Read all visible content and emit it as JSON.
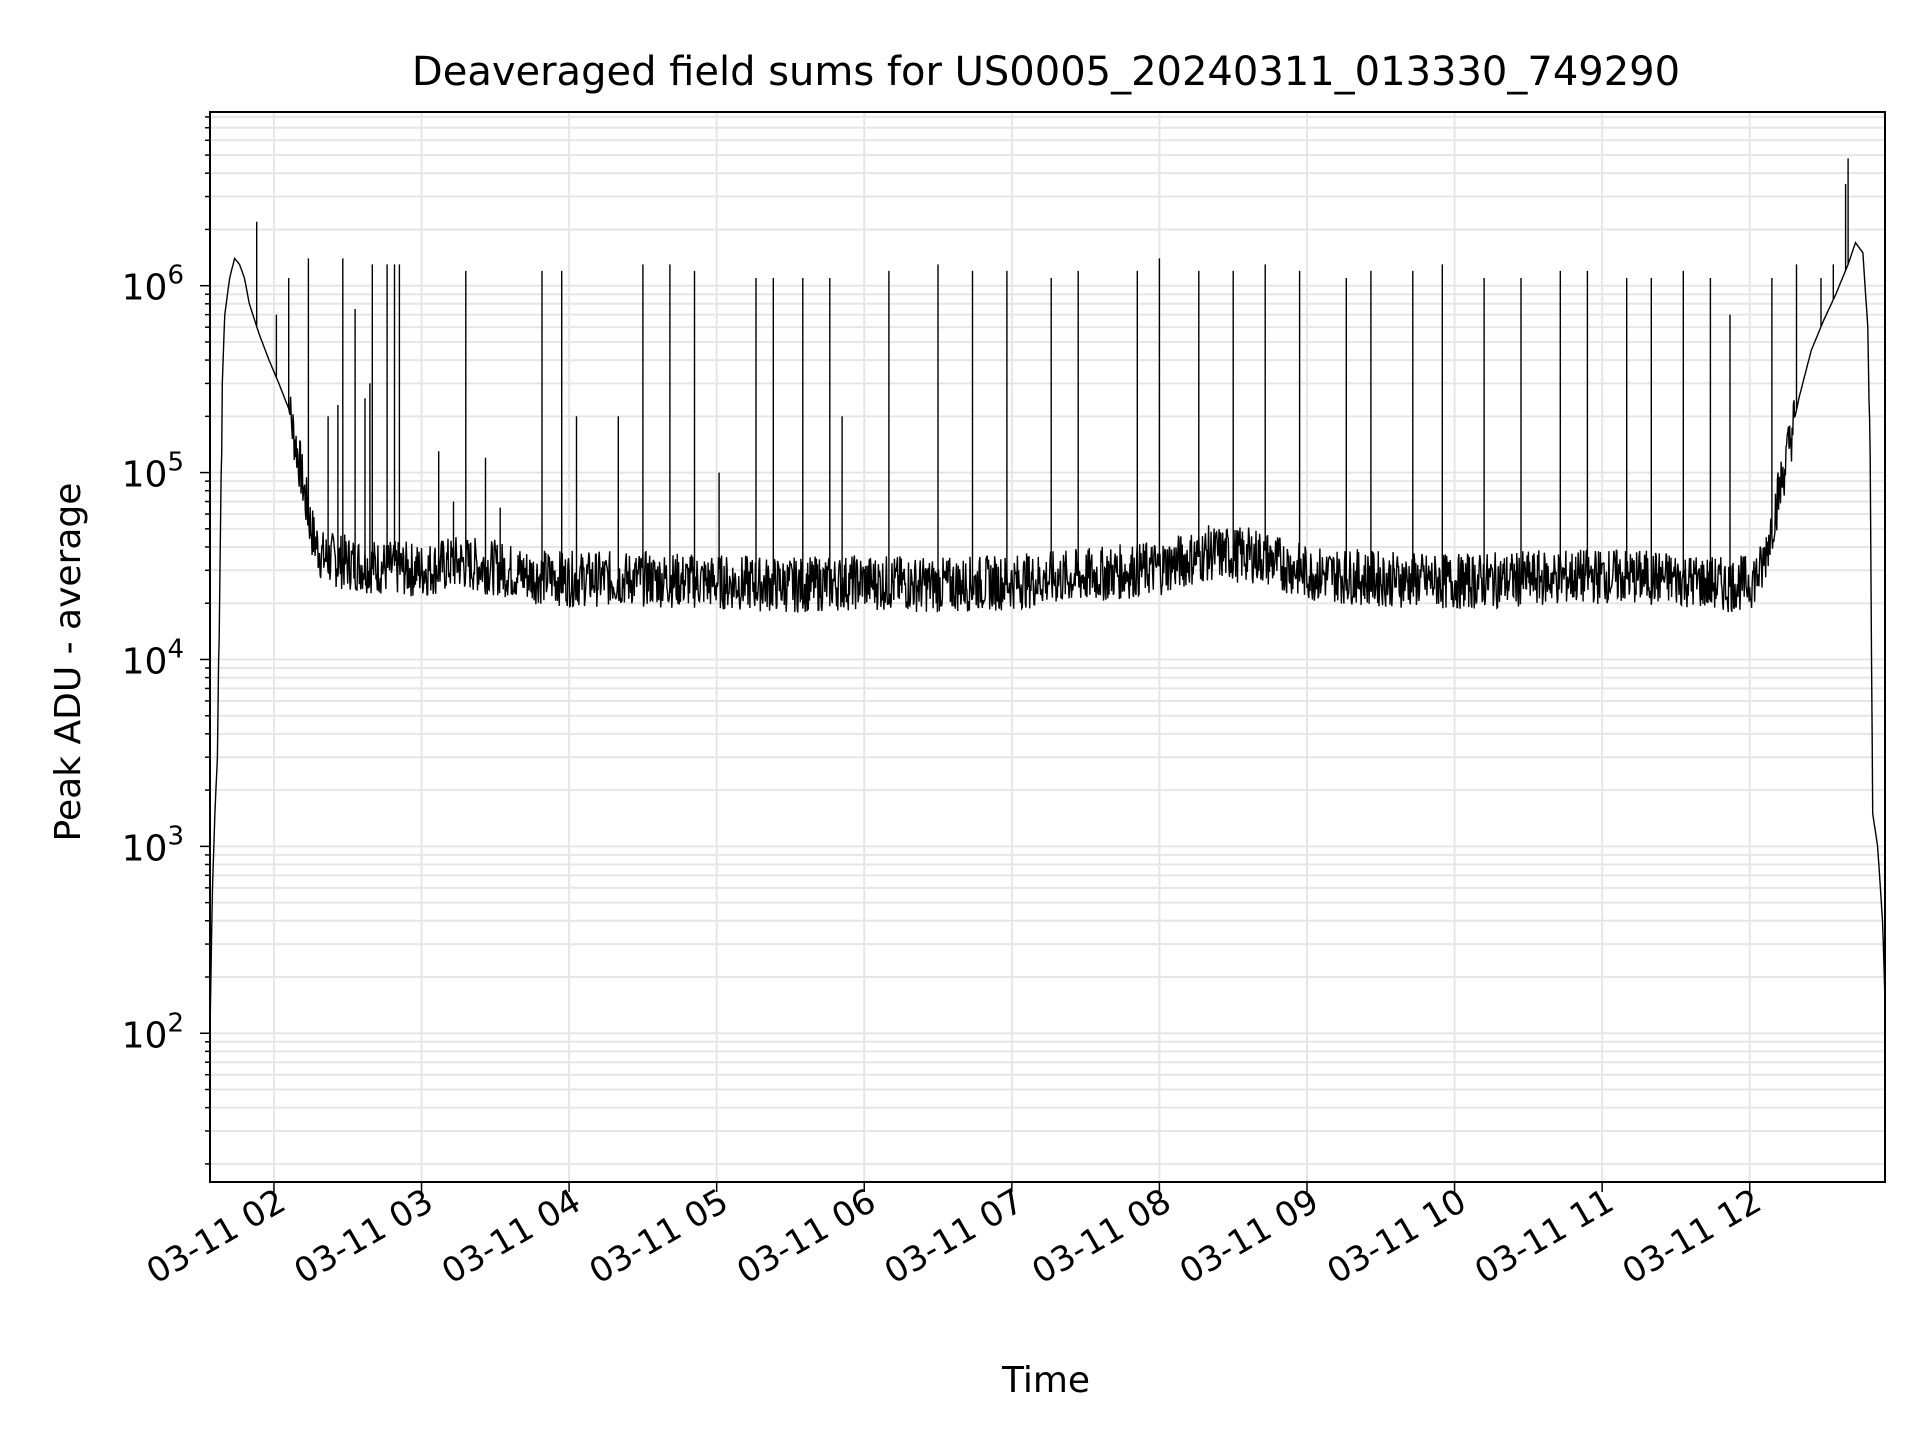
{
  "chart_data": {
    "type": "line",
    "title": "Deaveraged field sums for US0005_20240311_013330_749290",
    "xlabel": "Time",
    "ylabel": "Peak ADU - average",
    "x_scale": "time",
    "y_scale": "log",
    "xlim": [
      "2024-03-11 01:34",
      "2024-03-11 12:55"
    ],
    "ylim": [
      16,
      8500000
    ],
    "grid": true,
    "x_ticks": [
      {
        "label": "03-11 02",
        "value": "2024-03-11 02:00"
      },
      {
        "label": "03-11 03",
        "value": "2024-03-11 03:00"
      },
      {
        "label": "03-11 04",
        "value": "2024-03-11 04:00"
      },
      {
        "label": "03-11 05",
        "value": "2024-03-11 05:00"
      },
      {
        "label": "03-11 06",
        "value": "2024-03-11 06:00"
      },
      {
        "label": "03-11 07",
        "value": "2024-03-11 07:00"
      },
      {
        "label": "03-11 08",
        "value": "2024-03-11 08:00"
      },
      {
        "label": "03-11 09",
        "value": "2024-03-11 09:00"
      },
      {
        "label": "03-11 10",
        "value": "2024-03-11 10:00"
      },
      {
        "label": "03-11 11",
        "value": "2024-03-11 11:00"
      },
      {
        "label": "03-11 12",
        "value": "2024-03-11 12:00"
      }
    ],
    "y_ticks": [
      {
        "base": "10",
        "exp": "2",
        "value": 100
      },
      {
        "base": "10",
        "exp": "3",
        "value": 1000
      },
      {
        "base": "10",
        "exp": "4",
        "value": 10000
      },
      {
        "base": "10",
        "exp": "5",
        "value": 100000
      },
      {
        "base": "10",
        "exp": "6",
        "value": 1000000
      }
    ],
    "series": [
      {
        "color": "#000000",
        "points": [
          [
            "2024-03-11 01:34",
            100
          ],
          [
            "2024-03-11 01:35",
            600
          ],
          [
            "2024-03-11 01:36",
            1500
          ],
          [
            "2024-03-11 01:37",
            3000
          ],
          [
            "2024-03-11 01:38",
            30000
          ],
          [
            "2024-03-11 01:39",
            300000
          ],
          [
            "2024-03-11 01:40",
            700000
          ],
          [
            "2024-03-11 01:42",
            1100000
          ],
          [
            "2024-03-11 01:44",
            1400000
          ],
          [
            "2024-03-11 01:46",
            1300000
          ],
          [
            "2024-03-11 01:48",
            1100000
          ],
          [
            "2024-03-11 01:50",
            800000
          ],
          [
            "2024-03-11 01:54",
            550000
          ],
          [
            "2024-03-11 01:58",
            400000
          ],
          [
            "2024-03-11 02:02",
            300000
          ],
          [
            "2024-03-11 02:06",
            220000
          ],
          [
            "2024-03-11 02:10",
            120000
          ],
          [
            "2024-03-11 02:13",
            70000
          ],
          [
            "2024-03-11 02:16",
            45000
          ],
          [
            "2024-03-11 02:20",
            35000
          ],
          [
            "2024-03-11 02:30",
            33000
          ],
          [
            "2024-03-11 02:45",
            31000
          ],
          [
            "2024-03-11 03:00",
            30000
          ],
          [
            "2024-03-11 03:15",
            33000
          ],
          [
            "2024-03-11 03:30",
            31000
          ],
          [
            "2024-03-11 03:45",
            28000
          ],
          [
            "2024-03-11 04:00",
            27000
          ],
          [
            "2024-03-11 04:30",
            27000
          ],
          [
            "2024-03-11 05:00",
            26000
          ],
          [
            "2024-03-11 05:30",
            25000
          ],
          [
            "2024-03-11 06:00",
            26000
          ],
          [
            "2024-03-11 06:30",
            25000
          ],
          [
            "2024-03-11 07:00",
            26000
          ],
          [
            "2024-03-11 07:30",
            28000
          ],
          [
            "2024-03-11 08:00",
            31000
          ],
          [
            "2024-03-11 08:20",
            37000
          ],
          [
            "2024-03-11 08:40",
            36000
          ],
          [
            "2024-03-11 09:00",
            29000
          ],
          [
            "2024-03-11 09:30",
            27000
          ],
          [
            "2024-03-11 10:00",
            26000
          ],
          [
            "2024-03-11 10:30",
            27000
          ],
          [
            "2024-03-11 11:00",
            28000
          ],
          [
            "2024-03-11 11:30",
            27000
          ],
          [
            "2024-03-11 11:50",
            25000
          ],
          [
            "2024-03-11 12:00",
            26000
          ],
          [
            "2024-03-11 12:05",
            30000
          ],
          [
            "2024-03-11 12:10",
            60000
          ],
          [
            "2024-03-11 12:15",
            120000
          ],
          [
            "2024-03-11 12:20",
            250000
          ],
          [
            "2024-03-11 12:25",
            450000
          ],
          [
            "2024-03-11 12:30",
            650000
          ],
          [
            "2024-03-11 12:35",
            900000
          ],
          [
            "2024-03-11 12:40",
            1300000
          ],
          [
            "2024-03-11 12:43",
            1700000
          ],
          [
            "2024-03-11 12:46",
            1500000
          ],
          [
            "2024-03-11 12:48",
            600000
          ],
          [
            "2024-03-11 12:49",
            100000
          ],
          [
            "2024-03-11 12:50",
            1500
          ],
          [
            "2024-03-11 12:52",
            1000
          ],
          [
            "2024-03-11 12:54",
            400
          ],
          [
            "2024-03-11 12:55",
            150
          ]
        ],
        "spikes": [
          [
            "2024-03-11 01:53",
            2200000
          ],
          [
            "2024-03-11 02:01",
            700000
          ],
          [
            "2024-03-11 02:06",
            1100000
          ],
          [
            "2024-03-11 02:14",
            1400000
          ],
          [
            "2024-03-11 02:22",
            200000
          ],
          [
            "2024-03-11 02:26",
            230000
          ],
          [
            "2024-03-11 02:28",
            1400000
          ],
          [
            "2024-03-11 02:33",
            750000
          ],
          [
            "2024-03-11 02:37",
            250000
          ],
          [
            "2024-03-11 02:39",
            300000
          ],
          [
            "2024-03-11 02:40",
            1300000
          ],
          [
            "2024-03-11 02:46",
            1300000
          ],
          [
            "2024-03-11 02:49",
            1300000
          ],
          [
            "2024-03-11 02:51",
            1300000
          ],
          [
            "2024-03-11 03:07",
            130000
          ],
          [
            "2024-03-11 03:13",
            70000
          ],
          [
            "2024-03-11 03:18",
            1200000
          ],
          [
            "2024-03-11 03:26",
            120000
          ],
          [
            "2024-03-11 03:32",
            65000
          ],
          [
            "2024-03-11 03:49",
            1200000
          ],
          [
            "2024-03-11 03:57",
            1200000
          ],
          [
            "2024-03-11 04:03",
            200000
          ],
          [
            "2024-03-11 04:20",
            200000
          ],
          [
            "2024-03-11 04:30",
            1300000
          ],
          [
            "2024-03-11 04:41",
            1300000
          ],
          [
            "2024-03-11 04:51",
            1200000
          ],
          [
            "2024-03-11 05:01",
            100000
          ],
          [
            "2024-03-11 05:16",
            1100000
          ],
          [
            "2024-03-11 05:23",
            1100000
          ],
          [
            "2024-03-11 05:35",
            1100000
          ],
          [
            "2024-03-11 05:46",
            1100000
          ],
          [
            "2024-03-11 05:51",
            200000
          ],
          [
            "2024-03-11 06:10",
            1200000
          ],
          [
            "2024-03-11 06:30",
            1300000
          ],
          [
            "2024-03-11 06:44",
            1200000
          ],
          [
            "2024-03-11 06:58",
            1200000
          ],
          [
            "2024-03-11 07:16",
            1100000
          ],
          [
            "2024-03-11 07:27",
            1200000
          ],
          [
            "2024-03-11 07:51",
            1200000
          ],
          [
            "2024-03-11 08:00",
            1400000
          ],
          [
            "2024-03-11 08:16",
            1200000
          ],
          [
            "2024-03-11 08:30",
            1200000
          ],
          [
            "2024-03-11 08:43",
            1300000
          ],
          [
            "2024-03-11 08:57",
            1200000
          ],
          [
            "2024-03-11 09:16",
            1100000
          ],
          [
            "2024-03-11 09:26",
            1200000
          ],
          [
            "2024-03-11 09:43",
            1200000
          ],
          [
            "2024-03-11 09:55",
            1300000
          ],
          [
            "2024-03-11 10:12",
            1100000
          ],
          [
            "2024-03-11 10:27",
            1100000
          ],
          [
            "2024-03-11 10:43",
            1200000
          ],
          [
            "2024-03-11 10:54",
            1200000
          ],
          [
            "2024-03-11 11:10",
            1100000
          ],
          [
            "2024-03-11 11:20",
            1100000
          ],
          [
            "2024-03-11 11:33",
            1200000
          ],
          [
            "2024-03-11 11:44",
            1100000
          ],
          [
            "2024-03-11 11:52",
            700000
          ],
          [
            "2024-03-11 12:09",
            1100000
          ],
          [
            "2024-03-11 12:19",
            1300000
          ],
          [
            "2024-03-11 12:29",
            1100000
          ],
          [
            "2024-03-11 12:34",
            1300000
          ],
          [
            "2024-03-11 12:39",
            3500000
          ],
          [
            "2024-03-11 12:40",
            4800000
          ]
        ]
      }
    ]
  }
}
